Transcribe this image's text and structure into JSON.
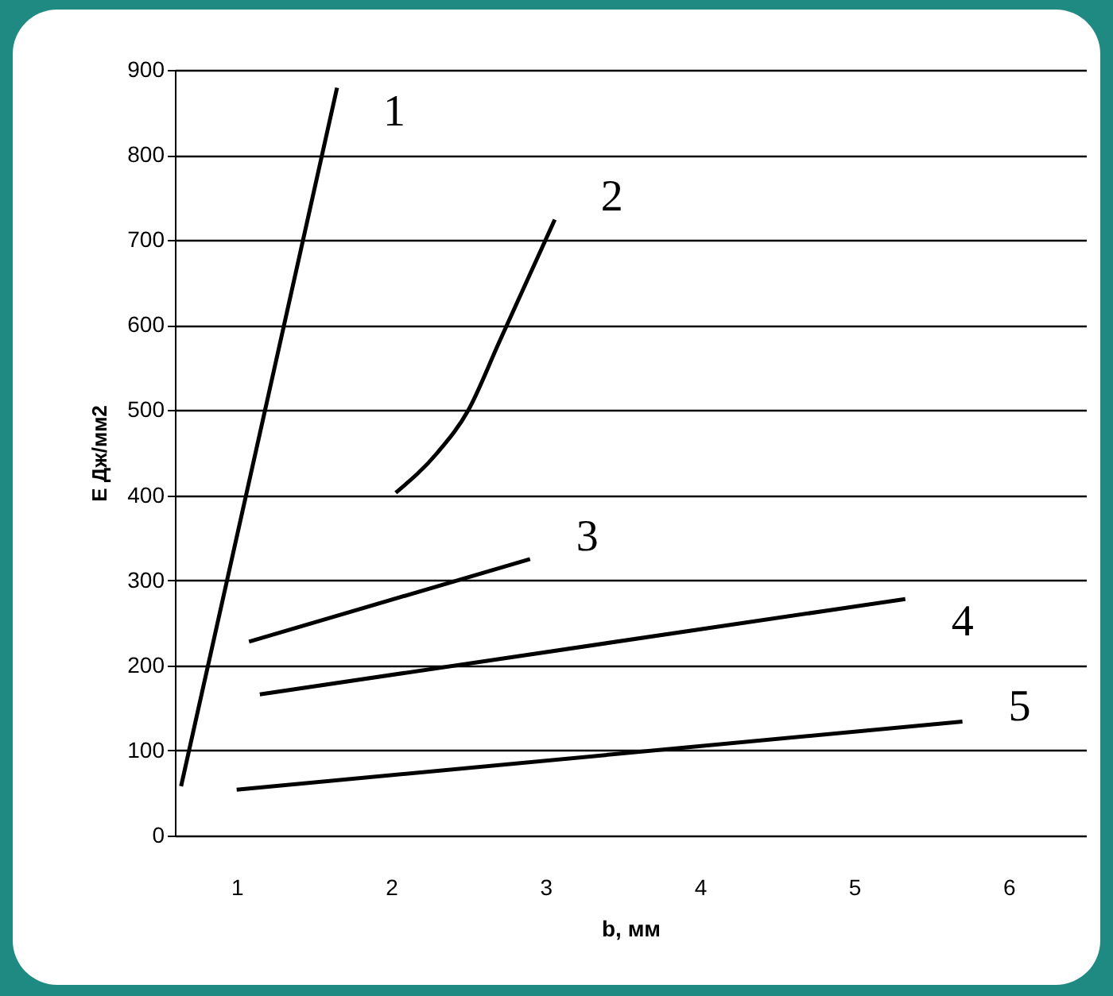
{
  "chart_data": {
    "type": "line",
    "xlabel": "b, мм",
    "ylabel": "E Дж/мм2",
    "xlim": [
      0.6,
      6.5
    ],
    "xticks": [
      1,
      2,
      3,
      4,
      5,
      6
    ],
    "ylim": [
      0,
      900
    ],
    "yticks": [
      0,
      100,
      200,
      300,
      400,
      500,
      600,
      700,
      800,
      900
    ],
    "grid": "y",
    "marker": "none",
    "line_style": "solid",
    "series": [
      {
        "name": "1",
        "color": "#000000",
        "x": [
          0.64,
          1.65
        ],
        "values": [
          58,
          879
        ]
      },
      {
        "name": "2",
        "color": "#000000",
        "x": [
          2.03,
          2.3,
          2.5,
          2.7,
          2.9,
          3.06
        ],
        "values": [
          403,
          450,
          500,
          580,
          660,
          724
        ]
      },
      {
        "name": "3",
        "color": "#000000",
        "x": [
          1.08,
          2.9
        ],
        "values": [
          228,
          325
        ]
      },
      {
        "name": "4",
        "color": "#000000",
        "x": [
          1.15,
          5.33
        ],
        "values": [
          166,
          278
        ]
      },
      {
        "name": "5",
        "color": "#000000",
        "x": [
          1.0,
          5.7
        ],
        "values": [
          54,
          134
        ]
      }
    ]
  }
}
